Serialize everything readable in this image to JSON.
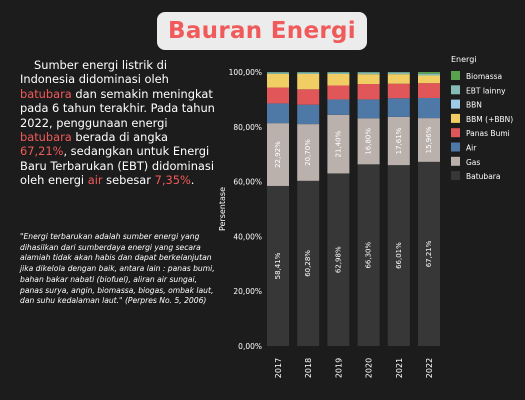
{
  "title": "Bauran Energi",
  "intro": {
    "p1": "Sumber energi listrik di Indonesia didominasi oleh ",
    "h1": "batubara",
    "p2": " dan semakin meningkat pada 6 tahun terakhir. Pada tahun 2022, penggunaan energi ",
    "h2": "batubara",
    "p3": " berada di angka ",
    "h3": "67,21%",
    "p4": ", sedangkan untuk Energi Baru Terbarukan (EBT) didominasi oleh energi ",
    "h4": "air",
    "p5": " sebesar ",
    "h5": "7,35%",
    "p6": "."
  },
  "quote": "\"Energi terbarukan adalah sumber energi yang dihasilkan dari sumberdaya energi yang secara alamiah tidak akan habis dan dapat berkelanjutan jika dikelola dengan baik, antara lain : panas bumi, bahan bakar nabati (biofuel), aliran air sungai, panas surya, angin, biomassa, biogas, ombak laut, dan suhu kedalaman laut.\" (Perpres No. 5, 2006)",
  "chart_data": {
    "type": "bar",
    "stacked": true,
    "percent_stacked": true,
    "categories": [
      "2017",
      "2018",
      "2019",
      "2020",
      "2021",
      "2022"
    ],
    "ylabel": "Persentase",
    "xlabel": "",
    "ylim": [
      0,
      100
    ],
    "yticks": [
      "0,00%",
      "20,00%",
      "40,00%",
      "60,00%",
      "80,00%",
      "100,00%"
    ],
    "legend_title": "Energi",
    "legend_position": "right",
    "grid": false,
    "series": [
      {
        "name": "Batubara",
        "color": "#373737",
        "values": [
          58.41,
          60.28,
          62.98,
          66.3,
          66.01,
          67.21
        ],
        "labels": [
          "58,41%",
          "60,28%",
          "62,98%",
          "66,30%",
          "66,01%",
          "67,21%"
        ]
      },
      {
        "name": "Gas",
        "color": "#bab0ac",
        "values": [
          22.92,
          20.7,
          21.4,
          16.8,
          17.61,
          15.96
        ],
        "labels": [
          "22,92%",
          "20,70%",
          "21,40%",
          "16,80%",
          "17,61%",
          "15,96%"
        ]
      },
      {
        "name": "Air",
        "color": "#4e79a7",
        "values": [
          7.2,
          7.1,
          5.6,
          6.9,
          6.8,
          7.35
        ]
      },
      {
        "name": "Panas Bumi",
        "color": "#e15759",
        "values": [
          5.8,
          5.6,
          5.1,
          5.6,
          5.3,
          5.4
        ]
      },
      {
        "name": "BBM (+BBN)",
        "color": "#f1ce63",
        "values": [
          5.0,
          5.6,
          4.2,
          3.6,
          3.5,
          2.8
        ]
      },
      {
        "name": "EBT lainny",
        "color": "#86bcb6",
        "values": [
          0.47,
          0.52,
          0.52,
          0.6,
          0.58,
          0.58
        ]
      },
      {
        "name": "BBN",
        "color": "#a0cbe8",
        "values": [
          0.1,
          0.1,
          0.1,
          0.1,
          0.1,
          0.1
        ]
      },
      {
        "name": "Biomassa",
        "color": "#59a14f",
        "values": [
          0.1,
          0.1,
          0.1,
          0.1,
          0.1,
          0.6
        ]
      }
    ],
    "legend_order": [
      "Biomassa",
      "EBT lainny",
      "BBN",
      "BBM (+BBN)",
      "Panas Bumi",
      "Air",
      "Gas",
      "Batubara"
    ]
  }
}
